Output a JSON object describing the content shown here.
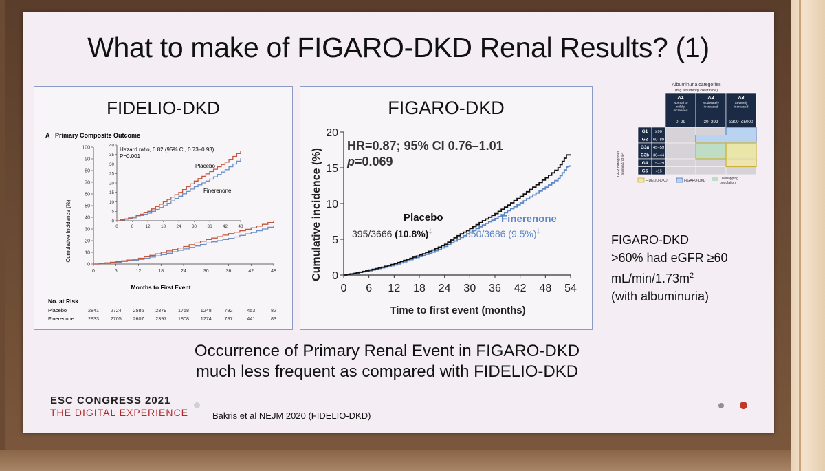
{
  "slide": {
    "title": "What to make of FIGARO-DKD Renal Results? (1)",
    "caption_line1": "Occurrence of Primary Renal Event in FIGARO-DKD",
    "caption_line2": "much less frequent as compared with FIDELIO-DKD",
    "congress_line1": "ESC CONGRESS 2021",
    "congress_line2": "THE DIGITAL EXPERIENCE",
    "reference": "Bakris et al NEJM 2020 (FIDELIO-DKD)",
    "side_note": {
      "line1": "FIGARO-DKD",
      "line2": ">60% had eGFR ≥60",
      "line3_pre": "mL/min/1.73m",
      "line3_sup": "2",
      "line4": "(with albuminuria)"
    },
    "colors": {
      "placebo_left": "#c0573e",
      "finerenone_left": "#6b8fc7",
      "placebo_right": "#111111",
      "finerenone_right": "#5a86c4",
      "accent_dot": "#c0392b"
    }
  },
  "chart_data": [
    {
      "type": "line",
      "title": "FIDELIO-DKD",
      "subtitle": "Primary Composite Outcome",
      "panel_letter": "A",
      "xlabel": "Months to First Event",
      "ylabel": "Cumulative Incidence (%)",
      "xlim": [
        0,
        48
      ],
      "ylim": [
        0,
        100
      ],
      "xticks": [
        0,
        6,
        12,
        18,
        24,
        30,
        36,
        42,
        48
      ],
      "yticks": [
        0,
        10,
        20,
        30,
        40,
        50,
        60,
        70,
        80,
        90,
        100
      ],
      "series": [
        {
          "name": "Placebo",
          "x": [
            0,
            6,
            12,
            18,
            24,
            30,
            36,
            42,
            48
          ],
          "y": [
            0,
            2,
            5,
            10,
            15,
            21,
            26,
            31,
            37
          ]
        },
        {
          "name": "Finerenone",
          "x": [
            0,
            6,
            12,
            18,
            24,
            30,
            36,
            42,
            48
          ],
          "y": [
            0,
            1.5,
            4,
            8,
            13,
            18,
            22,
            27,
            33
          ]
        }
      ],
      "inset": {
        "annotation_line1": "Hazard ratio, 0.82 (95% CI, 0.73–0.93)",
        "annotation_line2": "P=0.001",
        "xlim": [
          0,
          48
        ],
        "ylim": [
          0,
          40
        ],
        "xticks": [
          0,
          6,
          12,
          18,
          24,
          30,
          36,
          42,
          48
        ],
        "yticks": [
          0,
          5,
          10,
          15,
          20,
          25,
          30,
          35,
          40
        ],
        "labels": [
          "Placebo",
          "Finerenone"
        ],
        "series": [
          {
            "name": "Placebo",
            "x": [
              0,
              6,
              12,
              18,
              24,
              30,
              36,
              42,
              48
            ],
            "y": [
              0,
              2,
              5,
              10,
              15,
              21,
              26,
              31,
              37
            ]
          },
          {
            "name": "Finerenone",
            "x": [
              0,
              6,
              12,
              18,
              24,
              30,
              36,
              42,
              48
            ],
            "y": [
              0,
              1.5,
              4,
              8,
              13,
              18,
              22,
              27,
              33
            ]
          }
        ]
      },
      "risk_table": {
        "header": "No. at Risk",
        "rows": [
          {
            "label": "Placebo",
            "values": [
              "2841",
              "2724",
              "2586",
              "2379",
              "1758",
              "1248",
              "792",
              "453",
              "82"
            ]
          },
          {
            "label": "Finerenone",
            "values": [
              "2833",
              "2705",
              "2607",
              "2397",
              "1808",
              "1274",
              "787",
              "441",
              "83"
            ]
          }
        ]
      }
    },
    {
      "type": "line",
      "title": "FIGARO-DKD",
      "xlabel": "Time to first event (months)",
      "ylabel": "Cumulative incidence (%)",
      "xlim": [
        0,
        54
      ],
      "ylim": [
        0,
        20
      ],
      "xticks": [
        0,
        6,
        12,
        18,
        24,
        30,
        36,
        42,
        48,
        54
      ],
      "yticks": [
        0,
        5,
        10,
        15,
        20
      ],
      "annotation_line1": "HR=0.87; 95% CI 0.76–1.01",
      "annotation_p_label": "p",
      "annotation_p_value": "=0.069",
      "placebo_label": "Placebo",
      "placebo_count": "395/3666 ",
      "placebo_pct": "(10.8%)",
      "finerenone_label": "Finerenone",
      "finerenone_stat": "350/3686 (9.5%)",
      "footnote_mark": "‡",
      "series": [
        {
          "name": "Placebo",
          "x": [
            0,
            3,
            6,
            9,
            12,
            15,
            18,
            21,
            24,
            27,
            30,
            33,
            36,
            39,
            42,
            45,
            48,
            51,
            53,
            54
          ],
          "y": [
            0,
            0.3,
            0.7,
            1.1,
            1.6,
            2.2,
            2.8,
            3.5,
            4.3,
            5.5,
            6.5,
            7.6,
            8.6,
            9.8,
            11.0,
            12.3,
            13.6,
            15.0,
            16.8,
            16.8
          ]
        },
        {
          "name": "Finerenone",
          "x": [
            0,
            3,
            6,
            9,
            12,
            15,
            18,
            21,
            24,
            27,
            30,
            33,
            36,
            39,
            42,
            45,
            48,
            51,
            53,
            54
          ],
          "y": [
            0,
            0.3,
            0.6,
            1.0,
            1.4,
            2.0,
            2.6,
            3.2,
            4.0,
            5.0,
            6.0,
            7.0,
            7.9,
            9.0,
            10.1,
            11.2,
            12.3,
            13.5,
            15.1,
            15.3
          ]
        }
      ]
    },
    {
      "type": "table",
      "title": "Albuminuria categories",
      "subtitle": "(mg albumin/g creatinine)",
      "row_axis_label": "GFR categories",
      "row_axis_sublabel": "(ml/min/1.73 m²)",
      "columns": [
        {
          "code": "A1",
          "desc": "Normal to mildly increased",
          "range": "0–29"
        },
        {
          "code": "A2",
          "desc": "Moderately increased",
          "range": "30–299"
        },
        {
          "code": "A3",
          "desc": "Severely increased",
          "range": "≥300–≤5000"
        }
      ],
      "rows": [
        {
          "code": "G1",
          "range": "≥90"
        },
        {
          "code": "G2",
          "range": "60–89"
        },
        {
          "code": "G3a",
          "range": "45–59"
        },
        {
          "code": "G3b",
          "range": "30–44"
        },
        {
          "code": "G4",
          "range": "15–29"
        },
        {
          "code": "G5",
          "range": "<15"
        }
      ],
      "legend": [
        "FIDELIO-DKD",
        "FIGARO-DKD",
        "Overlapping population"
      ],
      "legend_colors": [
        "#f1e7a6",
        "#b9d3f0",
        "#bfdcc4"
      ]
    }
  ]
}
